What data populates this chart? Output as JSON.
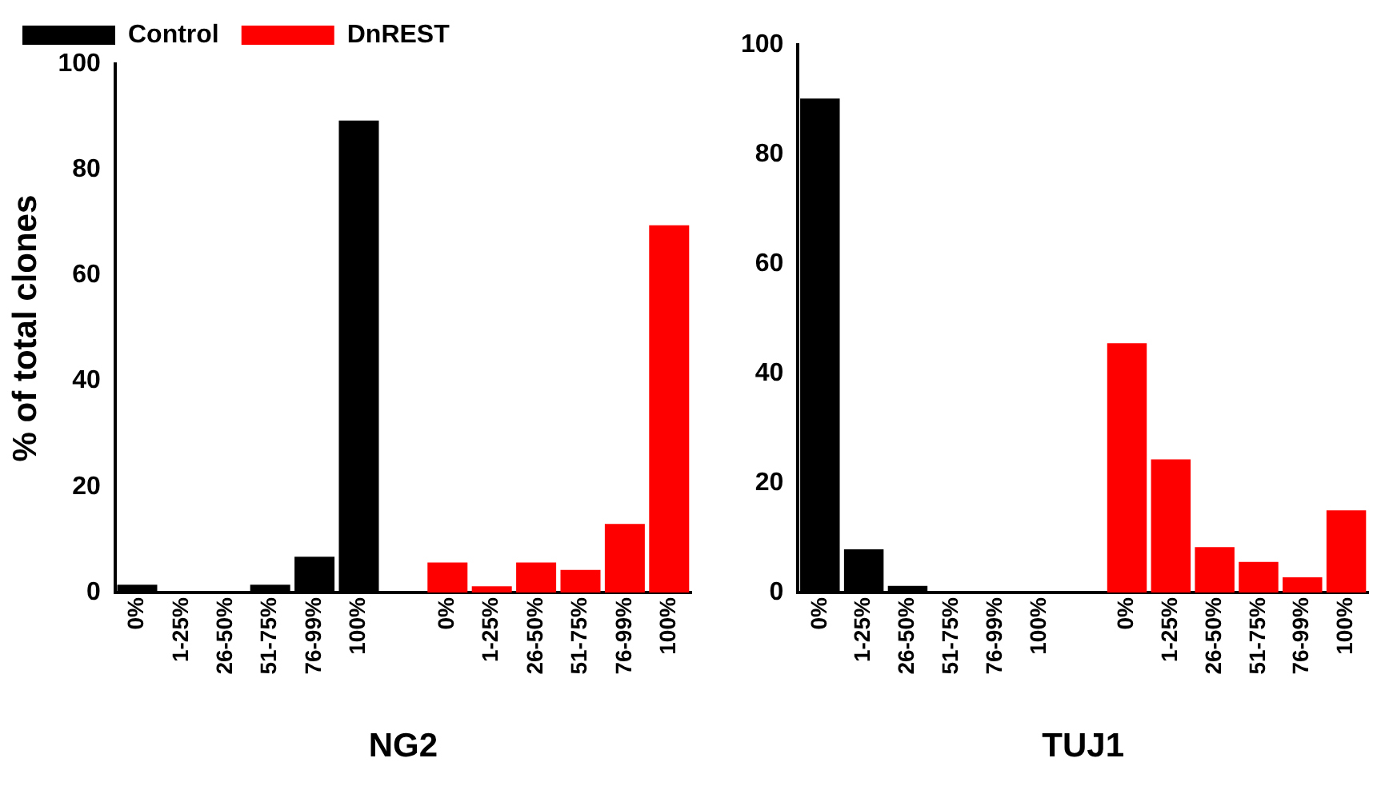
{
  "chart_data": [
    {
      "type": "bar",
      "xlabel": "NG2",
      "ylabel": "% of total clones",
      "categories": [
        "0%",
        "1-25%",
        "26-50%",
        "51-75%",
        "76-99%",
        "100%",
        null,
        "0%",
        "1-25%",
        "26-50%",
        "51-75%",
        "76-99%",
        "100%"
      ],
      "series": [
        {
          "name": "Control",
          "color": "#000000",
          "values": [
            1.5,
            0,
            0,
            1.5,
            6.8,
            89.3,
            null,
            null,
            null,
            null,
            null,
            null,
            null
          ]
        },
        {
          "name": "DnREST",
          "color": "#ff0000",
          "values": [
            null,
            null,
            null,
            null,
            null,
            null,
            null,
            5.7,
            1.2,
            5.7,
            4.3,
            13,
            69.5
          ]
        }
      ],
      "ylim": [
        0,
        100
      ],
      "yticks": [
        0,
        20,
        40,
        60,
        80,
        100
      ],
      "grid": false,
      "legend": "top left"
    },
    {
      "type": "bar",
      "xlabel": "TUJ1",
      "categories": [
        "0%",
        "1-25%",
        "26-50%",
        "51-75%",
        "76-99%",
        "100%",
        null,
        "0%",
        "1-25%",
        "26-50%",
        "51-75%",
        "76-99%",
        "100%"
      ],
      "series": [
        {
          "color": "#000000",
          "values": [
            90.2,
            7.9,
            1.2,
            0,
            0,
            0,
            null,
            null,
            null,
            null,
            null,
            null,
            null
          ]
        },
        {
          "color": "#ff0000",
          "values": [
            null,
            null,
            null,
            null,
            null,
            null,
            null,
            45.5,
            24.3,
            8.3,
            5.6,
            2.8,
            15
          ]
        }
      ],
      "ylim": [
        0,
        100
      ],
      "yticks": [
        0,
        20,
        40,
        60,
        80,
        100
      ],
      "grid": false
    }
  ]
}
